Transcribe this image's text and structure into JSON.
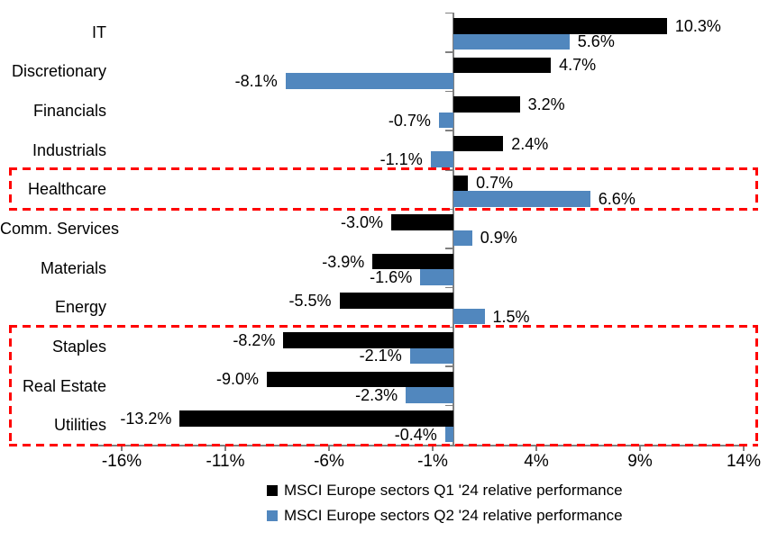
{
  "chart_data": {
    "type": "bar",
    "orientation": "horizontal",
    "title": "",
    "categories": [
      "IT",
      "Discretionary",
      "Financials",
      "Industrials",
      "Healthcare",
      "Comm. Services",
      "Materials",
      "Energy",
      "Staples",
      "Real Estate",
      "Utilities"
    ],
    "series": [
      {
        "name": "MSCI Europe sectors Q1 '24 relative performance",
        "color": "#000000",
        "values": [
          10.3,
          4.7,
          3.2,
          2.4,
          0.7,
          -3.0,
          -3.9,
          -5.5,
          -8.2,
          -9.0,
          -13.2
        ]
      },
      {
        "name": "MSCI Europe sectors Q2 '24 relative performance",
        "color": "#5187BE",
        "values": [
          5.6,
          -8.1,
          -0.7,
          -1.1,
          6.6,
          0.9,
          -1.6,
          1.5,
          -2.1,
          -2.3,
          -0.4
        ]
      }
    ],
    "data_labels": [
      "10.3%",
      "5.6%",
      "4.7%",
      "-8.1%",
      "3.2%",
      "-0.7%",
      "2.4%",
      "-1.1%",
      "0.7%",
      "6.6%",
      "-3.0%",
      "0.9%",
      "-3.9%",
      "-1.6%",
      "-5.5%",
      "1.5%",
      "-8.2%",
      "-2.1%",
      "-9.0%",
      "-2.3%",
      "-13.2%",
      "-0.4%"
    ],
    "x_axis": {
      "min": -16,
      "max": 14,
      "tick_interval": 5,
      "tick_values": [
        -16,
        -11,
        -6,
        -1,
        4,
        9,
        14
      ],
      "tick_labels": [
        "-16%",
        "-11%",
        "-6%",
        "-1%",
        "4%",
        "9%",
        "14%"
      ]
    },
    "grid": false,
    "axis_color": "#808080",
    "text_color": "#000000",
    "background": "#FFFFFF",
    "highlight_boxes": [
      {
        "name": "healthcare-highlight",
        "start_category": "Healthcare",
        "end_category": "Healthcare",
        "color": "#FF0000",
        "style": "dashed"
      },
      {
        "name": "defensives-highlight",
        "start_category": "Staples",
        "end_category": "Utilities",
        "color": "#FF0000",
        "style": "dashed"
      }
    ],
    "legend": {
      "position": "bottom",
      "entries": [
        "MSCI Europe sectors Q1 '24 relative performance",
        "MSCI Europe sectors Q2 '24 relative performance"
      ]
    }
  }
}
